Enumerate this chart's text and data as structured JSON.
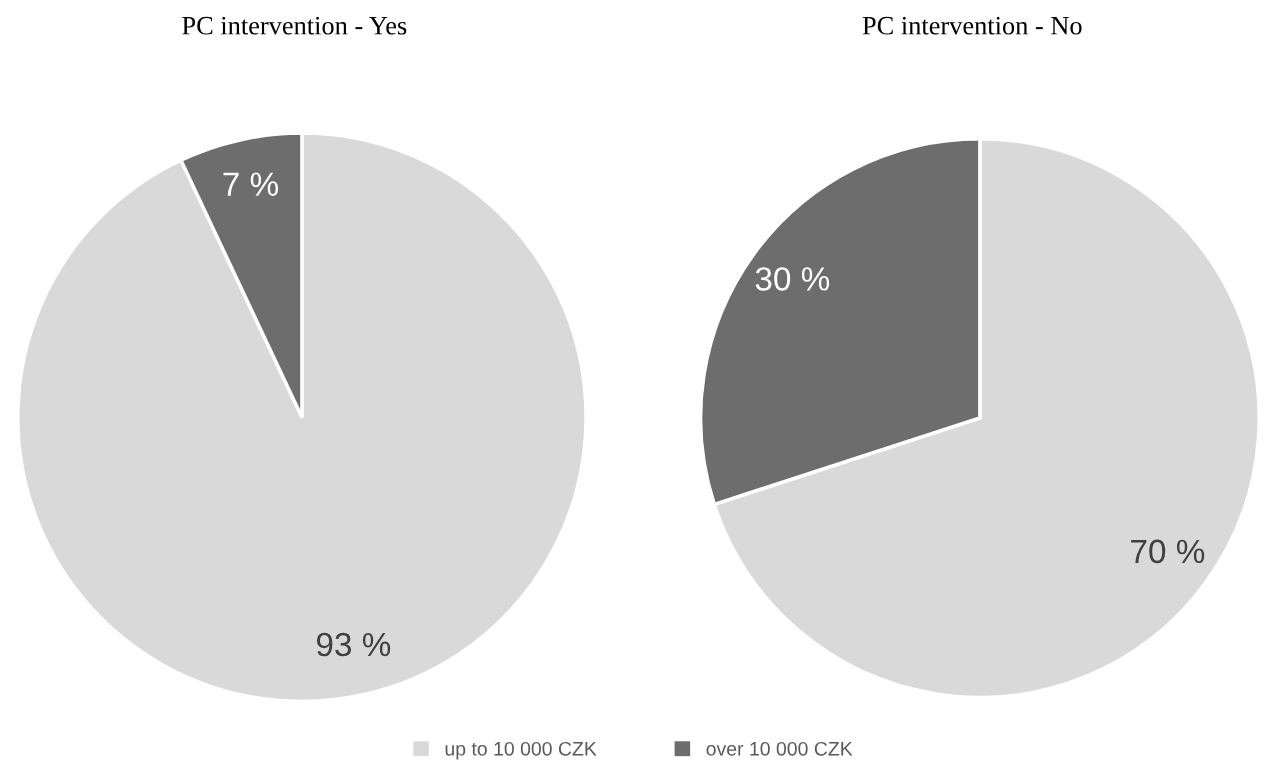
{
  "chart_data": [
    {
      "type": "pie",
      "title": "PC intervention - Yes",
      "categories": [
        "up to 10 000 CZK",
        "over 10 000 CZK"
      ],
      "values": [
        93,
        7
      ],
      "colors": [
        "#d9d9d9",
        "#6d6d6d"
      ],
      "value_labels": [
        "93 %",
        "7 %"
      ],
      "legend": "bottom"
    },
    {
      "type": "pie",
      "title": "PC intervention - No",
      "categories": [
        null,
        null
      ],
      "values": [
        70,
        30
      ],
      "colors": [
        "#d9d9d9",
        "#6d6d6d"
      ],
      "value_labels": [
        "70 %",
        "30 %"
      ]
    }
  ]
}
